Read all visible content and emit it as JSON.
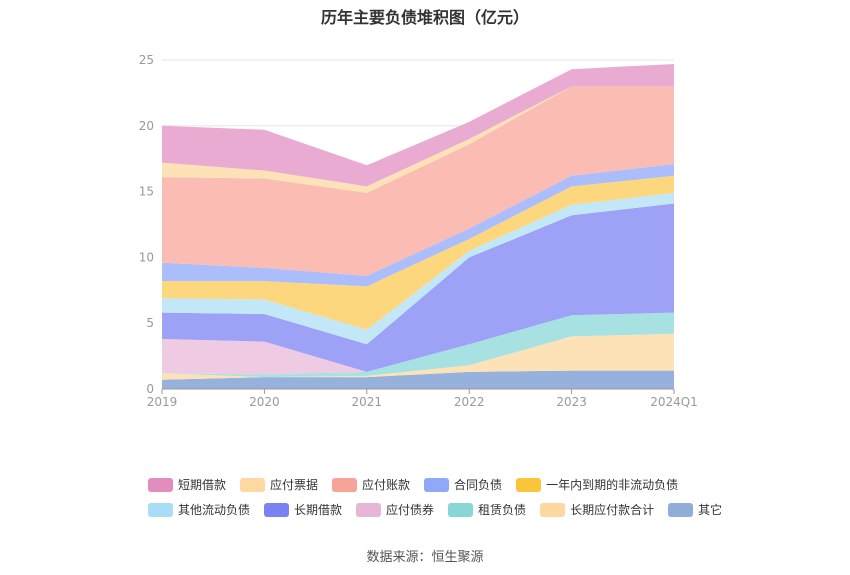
{
  "title": "历年主要负债堆积图（亿元）",
  "source": "数据来源：恒生聚源",
  "chart_data": {
    "type": "area",
    "stacked": true,
    "categories": [
      "2019",
      "2020",
      "2021",
      "2022",
      "2023",
      "2024Q1"
    ],
    "ylim": [
      0,
      25
    ],
    "yticks": [
      0,
      5,
      10,
      15,
      20,
      25
    ],
    "series": [
      {
        "name": "其它",
        "color": "#95b1dc",
        "values": [
          0.7,
          0.9,
          0.9,
          1.3,
          1.4,
          1.4
        ]
      },
      {
        "name": "长期应付款合计",
        "color": "#fde2b8",
        "values": [
          0.5,
          0.0,
          0.1,
          0.5,
          2.6,
          2.8
        ]
      },
      {
        "name": "租赁负债",
        "color": "#a8e1e2",
        "values": [
          0.0,
          0.2,
          0.3,
          1.6,
          1.6,
          1.6
        ]
      },
      {
        "name": "应付债券",
        "color": "#eecbe2",
        "values": [
          2.6,
          2.5,
          0.0,
          0.0,
          0.0,
          0.0
        ]
      },
      {
        "name": "长期借款",
        "color": "#9da2f7",
        "values": [
          2.0,
          2.1,
          2.1,
          6.6,
          7.6,
          8.3
        ]
      },
      {
        "name": "其他流动负债",
        "color": "#c2e8f8",
        "values": [
          1.1,
          1.1,
          1.1,
          0.5,
          0.8,
          0.8
        ]
      },
      {
        "name": "一年内到期的非流动负债",
        "color": "#fdd77e",
        "values": [
          1.3,
          1.4,
          3.3,
          0.9,
          1.4,
          1.3
        ]
      },
      {
        "name": "合同负债",
        "color": "#abbdfb",
        "values": [
          1.4,
          1.0,
          0.8,
          0.8,
          0.8,
          0.9
        ]
      },
      {
        "name": "应付账款",
        "color": "#fbbcb3",
        "values": [
          6.5,
          6.8,
          6.3,
          6.4,
          6.8,
          5.9
        ]
      },
      {
        "name": "应付票据",
        "color": "#fde2b8",
        "values": [
          1.1,
          0.6,
          0.5,
          0.4,
          0.0,
          0.0
        ]
      },
      {
        "name": "短期借款",
        "color": "#e9abd1",
        "values": [
          2.8,
          3.1,
          1.6,
          1.3,
          1.3,
          1.7
        ]
      }
    ]
  },
  "legend": {
    "rows": [
      [
        {
          "name": "短期借款",
          "color": "#e28dbe"
        },
        {
          "name": "应付票据",
          "color": "#fdd9a0"
        },
        {
          "name": "应付账款",
          "color": "#f8a397"
        },
        {
          "name": "合同负债",
          "color": "#8fa8f7"
        },
        {
          "name": "一年内到期的非流动负债",
          "color": "#fbc53b"
        }
      ],
      [
        {
          "name": "其他流动负债",
          "color": "#a9dcf6"
        },
        {
          "name": "长期借款",
          "color": "#7b83f2"
        },
        {
          "name": "应付债券",
          "color": "#e6b6d6"
        },
        {
          "name": "租赁负债",
          "color": "#88d6d6"
        },
        {
          "name": "长期应付款合计",
          "color": "#fdd9a0"
        },
        {
          "name": "其它",
          "color": "#8fadd8"
        }
      ]
    ]
  }
}
